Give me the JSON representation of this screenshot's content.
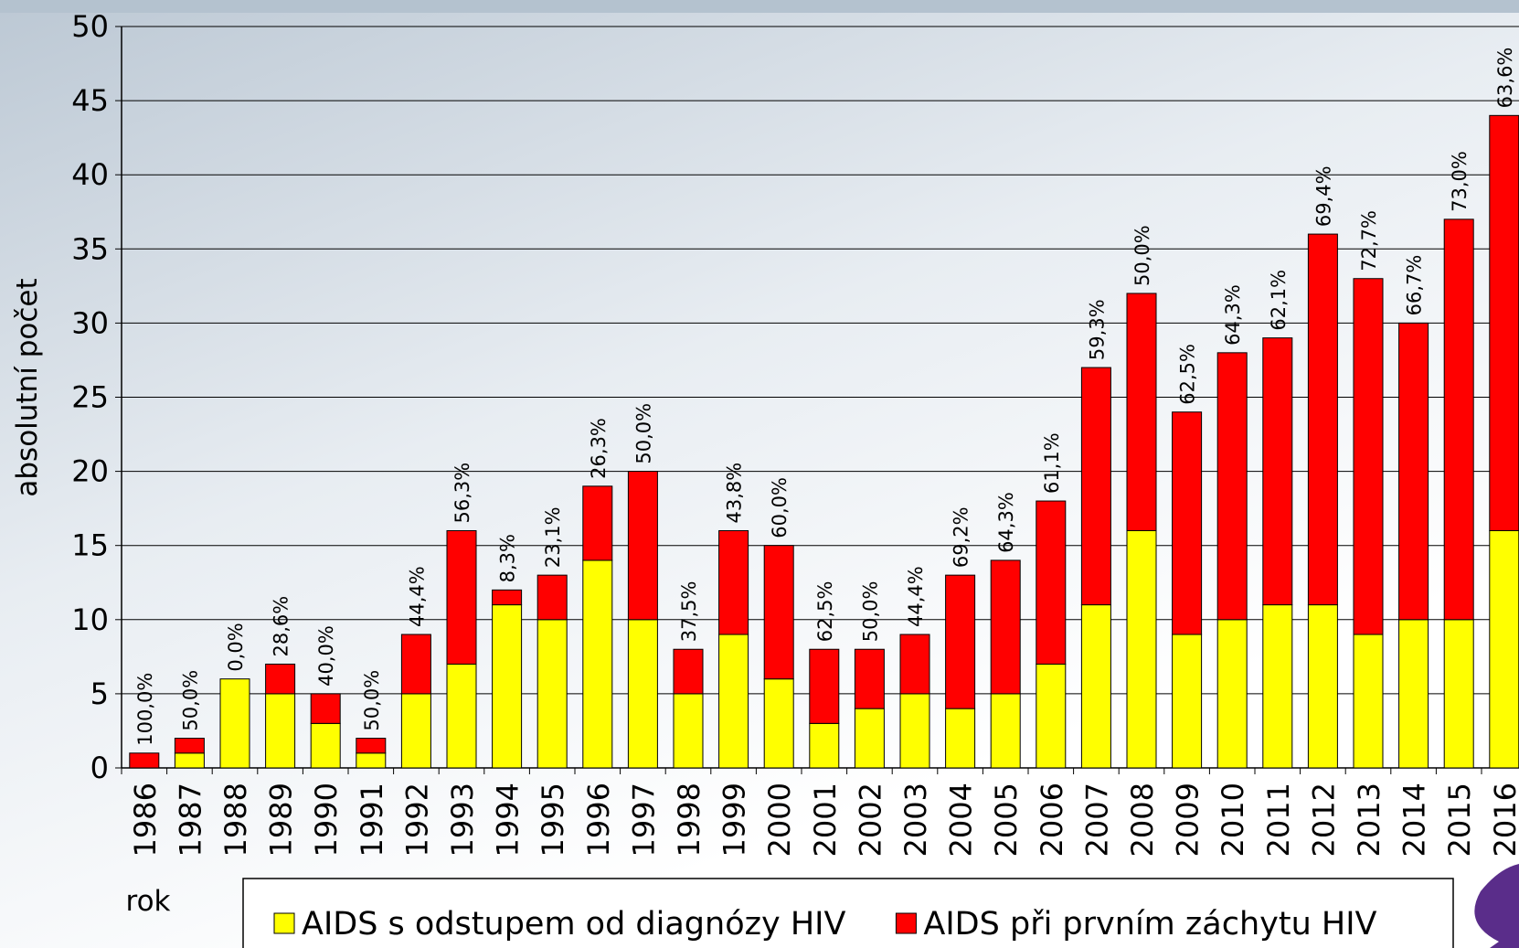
{
  "chart_data": {
    "type": "stacked_bar",
    "x_label": "rok",
    "y_label": "absolutní počet",
    "categories": [
      "1986",
      "1987",
      "1988",
      "1989",
      "1990",
      "1991",
      "1992",
      "1993",
      "1994",
      "1995",
      "1996",
      "1997",
      "1998",
      "1999",
      "2000",
      "2001",
      "2002",
      "2003",
      "2004",
      "2005",
      "2006",
      "2007",
      "2008",
      "2009",
      "2010",
      "2011",
      "2012",
      "2013",
      "2014",
      "2015",
      "2016"
    ],
    "series": [
      {
        "name": "AIDS s odstupem od diagnózy HIV",
        "color": "#ffff00",
        "values": [
          0,
          1,
          6,
          5,
          3,
          1,
          5,
          7,
          11,
          10,
          14,
          10,
          5,
          9,
          6,
          3,
          4,
          5,
          4,
          5,
          7,
          11,
          16,
          9,
          10,
          11,
          11,
          9,
          10,
          10,
          16
        ]
      },
      {
        "name": "AIDS při prvním záchytu HIV",
        "color": "#ff0000",
        "values": [
          1,
          1,
          0,
          2,
          2,
          1,
          4,
          9,
          1,
          3,
          5,
          10,
          3,
          7,
          9,
          5,
          4,
          4,
          9,
          9,
          11,
          16,
          16,
          15,
          18,
          18,
          25,
          24,
          20,
          27,
          28
        ]
      }
    ],
    "annotations": [
      "100,0%",
      "50,0%",
      "0,0%",
      "28,6%",
      "40,0%",
      "50,0%",
      "44,4%",
      "56,3%",
      "8,3%",
      "23,1%",
      "26,3%",
      "50,0%",
      "37,5%",
      "43,8%",
      "60,0%",
      "62,5%",
      "50,0%",
      "44,4%",
      "69,2%",
      "64,3%",
      "61,1%",
      "59,3%",
      "50,0%",
      "62,5%",
      "64,3%",
      "62,1%",
      "69,4%",
      "72,7%",
      "66,7%",
      "73,0%",
      "63,6%"
    ],
    "ylim": [
      0,
      50
    ],
    "yticks": [
      0,
      5,
      10,
      15,
      20,
      25,
      30,
      35,
      40,
      45,
      50
    ],
    "grid": true,
    "legend": "bottom"
  }
}
